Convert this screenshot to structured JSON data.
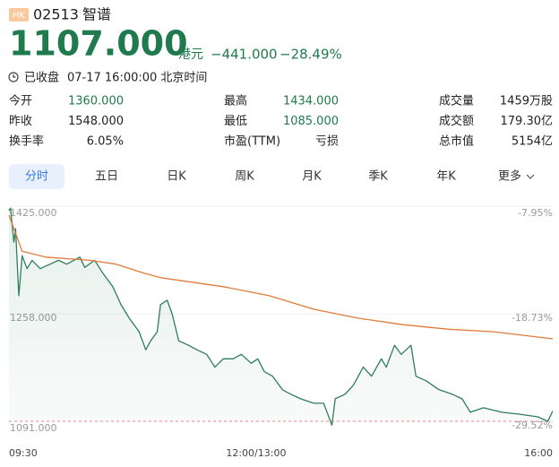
{
  "header": {
    "market": "HK",
    "code": "02513",
    "name": "智谱"
  },
  "quote": {
    "price": "1107.000",
    "currency": "港元",
    "change": "−441.000",
    "change_pct": "−28.49%"
  },
  "status": {
    "state": "已收盘",
    "time": "07-17 16:00:00 北京时间"
  },
  "stats": [
    [
      {
        "label": "今开",
        "value": "1360.000",
        "color": "#1f7a4d"
      },
      {
        "label": "最高",
        "value": "1434.000",
        "color": "#1f7a4d"
      },
      {
        "label": "成交量",
        "value": "1459万股",
        "color": "#222222"
      }
    ],
    [
      {
        "label": "昨收",
        "value": "1548.000",
        "color": "#222222"
      },
      {
        "label": "最低",
        "value": "1085.000",
        "color": "#1f7a4d"
      },
      {
        "label": "成交额",
        "value": "179.30亿",
        "color": "#222222"
      }
    ],
    [
      {
        "label": "换手率",
        "value": "6.05%",
        "color": "#222222"
      },
      {
        "label": "市盈(TTM)",
        "value": "亏损",
        "color": "#222222"
      },
      {
        "label": "总市值",
        "value": "5154亿",
        "color": "#222222"
      }
    ]
  ],
  "tabs": [
    "分时",
    "五日",
    "日K",
    "周K",
    "月K",
    "季K",
    "年K",
    "更多"
  ],
  "selected_tab": 0,
  "chart_data": {
    "type": "line",
    "xlim": [
      0,
      330
    ],
    "xticks": [
      {
        "value": 0,
        "label": "09:30"
      },
      {
        "value": 150,
        "label": "12:00/13:00"
      },
      {
        "value": 330,
        "label": "16:00"
      }
    ],
    "ylim": [
      1091,
      1425
    ],
    "yticks": [
      {
        "value": 1425,
        "label": "1425.000"
      },
      {
        "value": 1258,
        "label": "1258.000"
      },
      {
        "value": 1091,
        "label": "1091.000"
      }
    ],
    "y2lim": [
      -29.52,
      -7.95
    ],
    "y2ticks": [
      {
        "value": -7.95,
        "label": "-7.95%"
      },
      {
        "value": -18.73,
        "label": "-18.73%"
      },
      {
        "value": -29.52,
        "label": "-29.52%"
      }
    ],
    "series": [
      {
        "color": "#2e7d5b",
        "area": true,
        "x": [
          0,
          1,
          3,
          4,
          6,
          8,
          11,
          14,
          19,
          25,
          30,
          35,
          43,
          46,
          52,
          57,
          63,
          68,
          73,
          79,
          83,
          86,
          90,
          92,
          96,
          99,
          103,
          109,
          114,
          120,
          125,
          130,
          136,
          141,
          147,
          151,
          155,
          160,
          166,
          171,
          177,
          185,
          191,
          196,
          198,
          204,
          209,
          215,
          220,
          226,
          229,
          234,
          238,
          244,
          247,
          253,
          261,
          269,
          275,
          280,
          288,
          299,
          310,
          321,
          327,
          330
        ],
        "values": [
          1418,
          1422,
          1369,
          1390,
          1286,
          1348,
          1328,
          1341,
          1328,
          1335,
          1341,
          1335,
          1346,
          1330,
          1341,
          1321,
          1300,
          1272,
          1251,
          1230,
          1202,
          1216,
          1230,
          1272,
          1279,
          1258,
          1216,
          1209,
          1202,
          1195,
          1175,
          1188,
          1188,
          1195,
          1181,
          1188,
          1168,
          1161,
          1140,
          1133,
          1126,
          1119,
          1119,
          1085,
          1126,
          1133,
          1147,
          1175,
          1161,
          1188,
          1175,
          1209,
          1195,
          1209,
          1161,
          1154,
          1140,
          1133,
          1126,
          1105,
          1112,
          1105,
          1102,
          1098,
          1091,
          1107
        ]
      },
      {
        "color": "#e07b39",
        "area": false,
        "x": [
          0,
          8,
          22,
          49,
          65,
          82,
          92,
          130,
          158,
          185,
          212,
          239,
          266,
          294,
          330
        ],
        "values": [
          1411,
          1355,
          1346,
          1341,
          1335,
          1321,
          1314,
          1300,
          1286,
          1265,
          1251,
          1241,
          1234,
          1230,
          1219
        ]
      }
    ]
  }
}
